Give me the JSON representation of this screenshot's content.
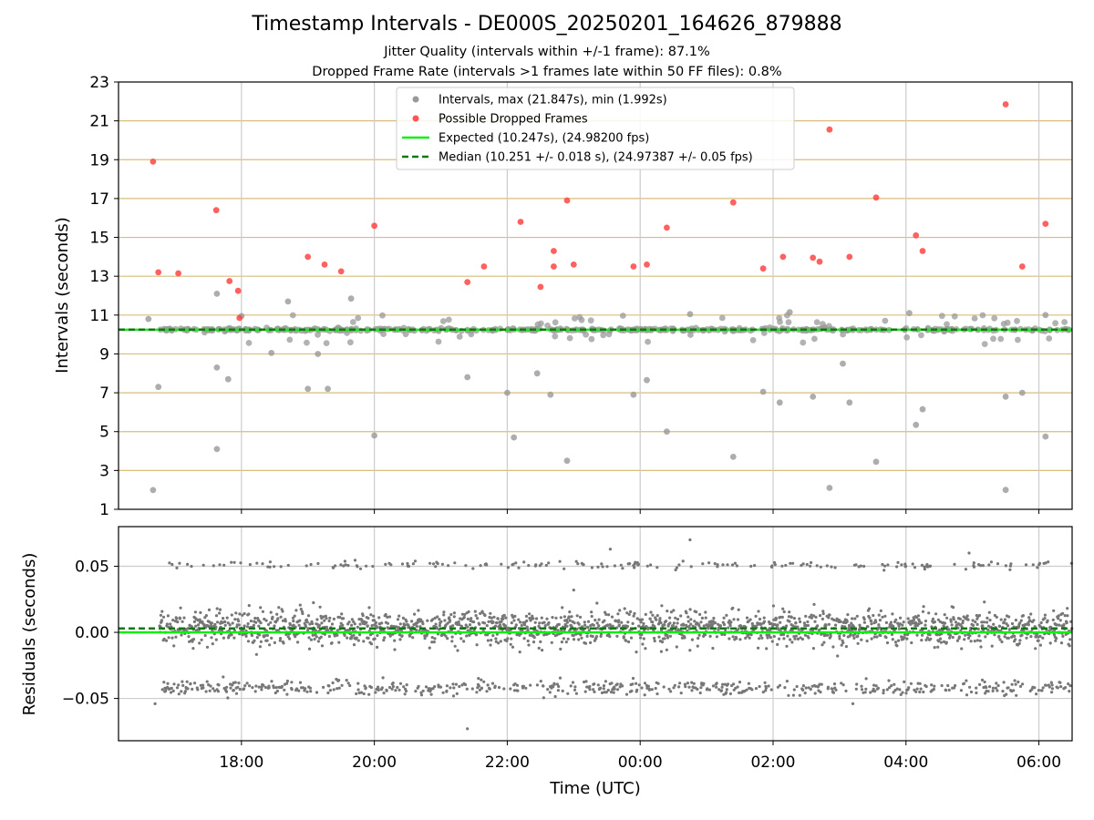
{
  "chart_data": [
    {
      "type": "scatter",
      "title": "Timestamp Intervals - DE000S_20250201_164626_879888",
      "subtitle_1": "Jitter Quality (intervals within +/-1 frame): 87.1%",
      "subtitle_2": "Dropped Frame Rate (intervals >1 frames late within 50 FF files): 0.8%",
      "xlabel": "",
      "ylabel": "Intervals (seconds)",
      "x_unit": "hours since 00:00 UTC (negative = previous day)",
      "xlim": [
        -7.85,
        6.5
      ],
      "ylim": [
        1,
        23
      ],
      "y_ticks": [
        1,
        3,
        5,
        7,
        9,
        11,
        13,
        15,
        17,
        19,
        21,
        23
      ],
      "grid": "horizontal gold lines, vertical grey lines",
      "legend_position": "top-center",
      "legend": [
        "Intervals, max (21.847s), min (1.992s)",
        "Possible Dropped Frames",
        "Expected (10.247s), (24.98200 fps)",
        "Median (10.251 +/- 0.018 s), (24.97387 +/- 0.05 fps)"
      ],
      "colors": {
        "intervals": "#999999",
        "dropped": "#ff4444",
        "expected": "#11ee11",
        "median": "#117711",
        "hgrid": "#d9bd7a",
        "vgrid": "#cccccc"
      },
      "expected": 10.247,
      "median": 10.251,
      "series": [
        {
          "name": "Intervals, max (21.847s), min (1.992s)",
          "points": [
            [
              -7.33,
              1.99
            ],
            [
              -6.37,
              4.1
            ],
            [
              -6.2,
              7.7
            ],
            [
              -6.0,
              10.95
            ],
            [
              -5.55,
              9.05
            ],
            [
              -5.0,
              7.2
            ],
            [
              -4.85,
              9.0
            ],
            [
              -4.0,
              4.8
            ],
            [
              -2.6,
              7.8
            ],
            [
              -2.0,
              7.0
            ],
            [
              -1.9,
              4.7
            ],
            [
              -1.55,
              8.0
            ],
            [
              -1.35,
              6.9
            ],
            [
              -1.1,
              3.5
            ],
            [
              -0.1,
              6.9
            ],
            [
              0.1,
              7.65
            ],
            [
              0.4,
              5.0
            ],
            [
              0.75,
              11.05
            ],
            [
              1.4,
              3.7
            ],
            [
              1.85,
              7.05
            ],
            [
              2.1,
              6.5
            ],
            [
              2.25,
              11.15
            ],
            [
              2.6,
              6.8
            ],
            [
              2.85,
              2.1
            ],
            [
              3.05,
              8.5
            ],
            [
              3.15,
              6.5
            ],
            [
              3.55,
              3.45
            ],
            [
              4.05,
              11.1
            ],
            [
              4.15,
              5.35
            ],
            [
              4.25,
              6.15
            ],
            [
              5.5,
              2.0
            ],
            [
              5.5,
              6.8
            ],
            [
              5.75,
              7.0
            ],
            [
              6.1,
              4.75
            ],
            [
              6.1,
              11.0
            ],
            [
              -6.37,
              12.1
            ],
            [
              -6.37,
              8.3
            ],
            [
              -5.3,
              11.7
            ],
            [
              -4.35,
              11.85
            ],
            [
              -4.7,
              7.2
            ],
            [
              -7.25,
              7.3
            ],
            [
              -7.4,
              10.8
            ]
          ]
        },
        {
          "name": "Possible Dropped Frames",
          "points": [
            [
              -7.33,
              18.9
            ],
            [
              -7.25,
              13.2
            ],
            [
              -6.95,
              13.15
            ],
            [
              -6.38,
              16.4
            ],
            [
              -6.18,
              12.75
            ],
            [
              -6.05,
              12.25
            ],
            [
              -6.03,
              10.85
            ],
            [
              -5.0,
              14.0
            ],
            [
              -4.75,
              13.6
            ],
            [
              -4.5,
              13.25
            ],
            [
              -4.0,
              15.6
            ],
            [
              -2.6,
              12.7
            ],
            [
              -2.35,
              13.5
            ],
            [
              -1.8,
              15.8
            ],
            [
              -1.5,
              12.45
            ],
            [
              -1.3,
              14.3
            ],
            [
              -1.3,
              13.5
            ],
            [
              -1.1,
              16.9
            ],
            [
              -1.0,
              13.6
            ],
            [
              -0.1,
              13.5
            ],
            [
              0.1,
              13.6
            ],
            [
              0.4,
              15.5
            ],
            [
              1.4,
              16.8
            ],
            [
              1.85,
              13.4
            ],
            [
              2.15,
              14.0
            ],
            [
              2.6,
              13.95
            ],
            [
              2.7,
              13.75
            ],
            [
              2.85,
              20.55
            ],
            [
              3.15,
              14.0
            ],
            [
              3.55,
              17.05
            ],
            [
              4.15,
              15.1
            ],
            [
              4.25,
              14.3
            ],
            [
              5.5,
              21.85
            ],
            [
              5.75,
              13.5
            ],
            [
              6.1,
              15.7
            ]
          ]
        }
      ]
    },
    {
      "type": "scatter",
      "title": "",
      "xlabel": "Time (UTC)",
      "ylabel": "Residuals (seconds)",
      "xlim": [
        -7.85,
        6.5
      ],
      "ylim": [
        -0.082,
        0.08
      ],
      "x_ticks": [
        {
          "v": -6,
          "label": "18:00"
        },
        {
          "v": -4,
          "label": "20:00"
        },
        {
          "v": -2,
          "label": "22:00"
        },
        {
          "v": 0,
          "label": "00:00"
        },
        {
          "v": 2,
          "label": "02:00"
        },
        {
          "v": 4,
          "label": "04:00"
        },
        {
          "v": 6,
          "label": "06:00"
        }
      ],
      "y_ticks": [
        {
          "v": 0.05,
          "label": "0.05"
        },
        {
          "v": 0.0,
          "label": "0.00"
        },
        {
          "v": -0.05,
          "label": "−0.05"
        }
      ],
      "grid": "grey gridlines",
      "expected_residual": 0.0,
      "median_residual": 0.003,
      "series": [
        {
          "name": "residuals",
          "description": "dense band of residual points from 16:46 to 06:30 UTC; main cluster near 0.0 (about -0.015 to 0.02), secondary bands near +0.052 and -0.042",
          "x_range": [
            -7.23,
            6.5
          ],
          "bands": [
            {
              "center": 0.003,
              "spread": 0.011,
              "weight": 0.72
            },
            {
              "center": 0.051,
              "spread": 0.0025,
              "weight": 0.07
            },
            {
              "center": -0.042,
              "spread": 0.0045,
              "weight": 0.21
            }
          ],
          "outliers": [
            [
              -2.6,
              -0.073
            ],
            [
              0.75,
              0.07
            ],
            [
              -0.45,
              0.063
            ],
            [
              4.15,
              -0.045
            ],
            [
              3.2,
              -0.054
            ],
            [
              -7.3,
              -0.054
            ],
            [
              4.95,
              0.06
            ],
            [
              -1.0,
              0.032
            ]
          ]
        }
      ]
    }
  ]
}
